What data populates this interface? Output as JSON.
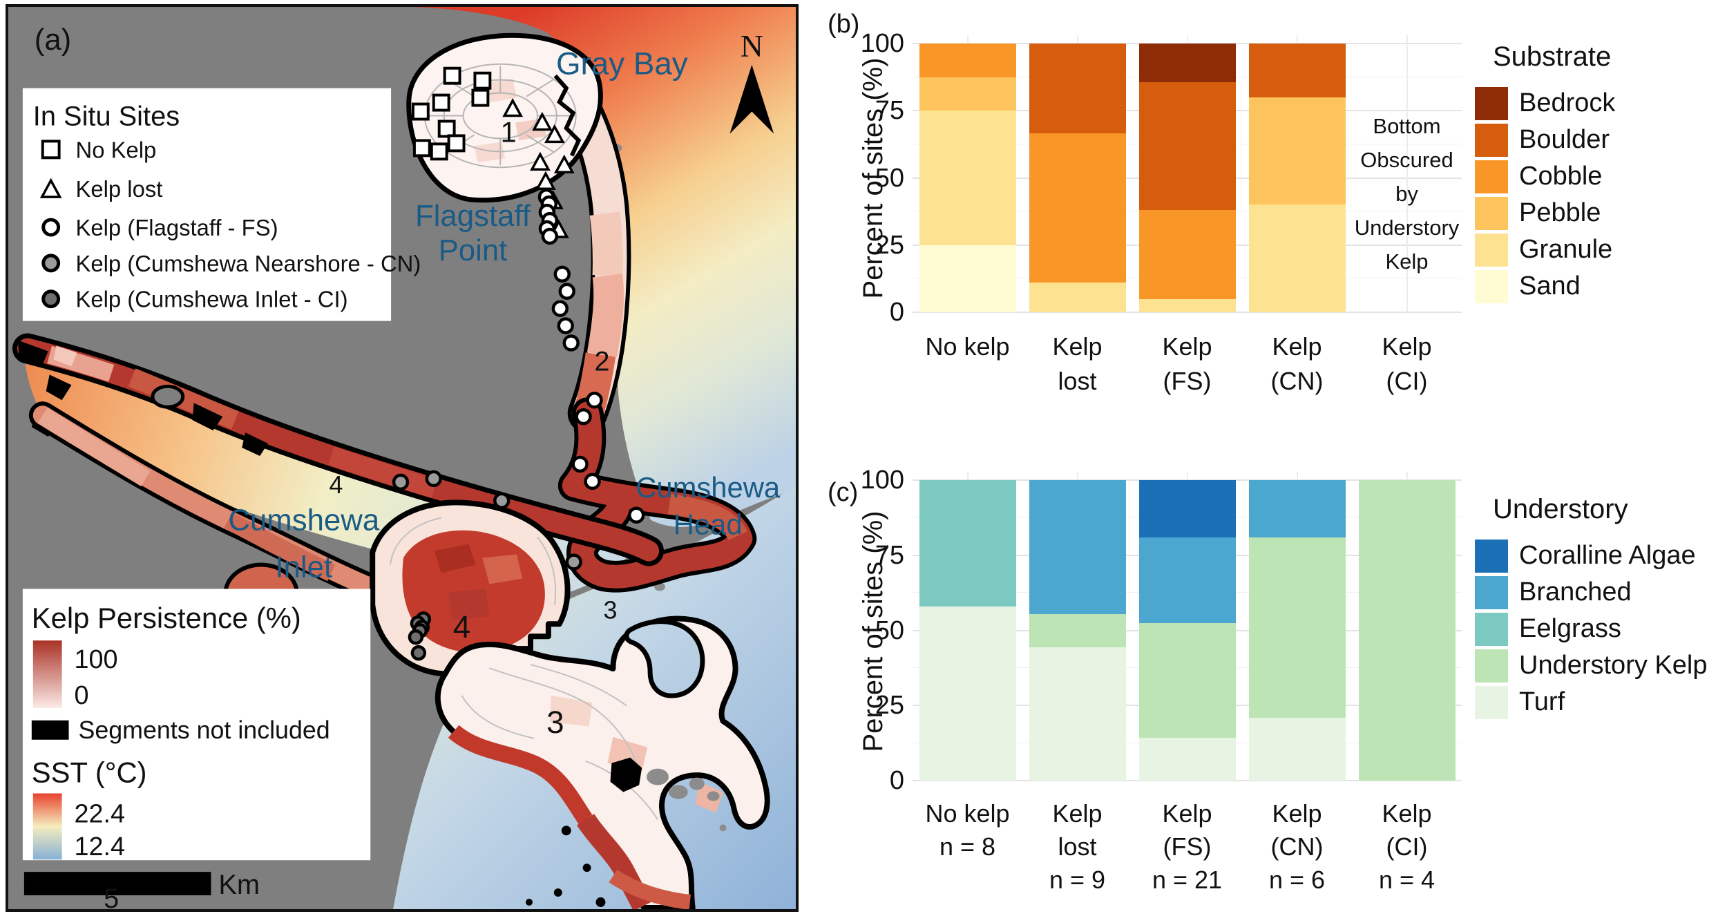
{
  "figure": {
    "panel_a_label": "(a)",
    "panel_b_label": "(b)",
    "panel_c_label": "(c)"
  },
  "map": {
    "labels": {
      "gray_bay": "Gray Bay",
      "flagstaff_1": "Flagstaff",
      "flagstaff_2": "Point",
      "inlet_1": "Cumshewa",
      "inlet_2": "Inlet",
      "head_1": "Cumshewa",
      "head_2": "Head",
      "north": "N"
    },
    "region_numbers": {
      "r1": "1",
      "r2": "2",
      "r3_coast": "3",
      "r3": "3",
      "r4_inlet": "4",
      "r4": "4",
      "r5": "5"
    },
    "site_legend": {
      "title": "In Situ Sites",
      "items": [
        {
          "symbol": "square",
          "label": "No Kelp"
        },
        {
          "symbol": "triangle",
          "label": "Kelp lost"
        },
        {
          "symbol": "circle-white",
          "label": "Kelp (Flagstaff - FS)"
        },
        {
          "symbol": "circle-gray",
          "label": "Kelp (Cumshewa Nearshore - CN)"
        },
        {
          "symbol": "circle-dark-gray",
          "label": "Kelp (Cumshewa Inlet - CI)"
        }
      ]
    },
    "kelp_legend": {
      "title": "Kelp Persistence (%)",
      "max": "100",
      "min": "0",
      "segments_label": "Segments not included",
      "sst_title": "SST (°C)",
      "sst_max": "22.4",
      "sst_min": "12.4"
    },
    "scale_bar": {
      "unit": "Km",
      "value": "5"
    },
    "colors": {
      "land": "#7f7f7f",
      "persistence_high": "#a93226",
      "persistence_low": "#fdf2ee",
      "sst_warm": "#e8432e",
      "sst_mid": "#f6edbe",
      "sst_cool": "#86b0d6",
      "place_label_blue": "#1a5b86"
    }
  },
  "chart_data": [
    {
      "id": "b",
      "type": "bar",
      "stacked": true,
      "ylabel": "Percent of sites (%)",
      "yticks": [
        0,
        25,
        50,
        75,
        100
      ],
      "ylim": [
        0,
        100
      ],
      "categories": [
        [
          "No kelp"
        ],
        [
          "Kelp",
          "lost"
        ],
        [
          "Kelp",
          "(FS)"
        ],
        [
          "Kelp",
          "(CN)"
        ],
        [
          "Kelp",
          "(CI)"
        ]
      ],
      "series": [
        {
          "name": "Sand",
          "color": "#fffcd4",
          "values": [
            25,
            0,
            0,
            0,
            0
          ]
        },
        {
          "name": "Granule",
          "color": "#fde292",
          "values": [
            50,
            11.1,
            4.8,
            40,
            0
          ]
        },
        {
          "name": "Pebble",
          "color": "#fdc35c",
          "values": [
            12.5,
            0,
            0,
            40,
            0
          ]
        },
        {
          "name": "Cobble",
          "color": "#f89627",
          "values": [
            12.5,
            55.6,
            33.3,
            0,
            0
          ]
        },
        {
          "name": "Boulder",
          "color": "#d55d0d",
          "values": [
            0,
            33.3,
            47.6,
            20,
            0
          ]
        },
        {
          "name": "Bedrock",
          "color": "#8e2c06",
          "values": [
            0,
            0,
            14.3,
            0,
            0
          ]
        }
      ],
      "legend_title": "Substrate",
      "legend": [
        {
          "name": "Bedrock",
          "color": "#8e2c06"
        },
        {
          "name": "Boulder",
          "color": "#d55d0d"
        },
        {
          "name": "Cobble",
          "color": "#f89627"
        },
        {
          "name": "Pebble",
          "color": "#fdc35c"
        },
        {
          "name": "Granule",
          "color": "#fde292"
        },
        {
          "name": "Sand",
          "color": "#fffcd4"
        }
      ],
      "annotation": [
        "Bottom",
        "Obscured",
        "by",
        "Understory",
        "Kelp"
      ],
      "annotation_slot": 4
    },
    {
      "id": "c",
      "type": "bar",
      "stacked": true,
      "ylabel": "Percent of sites (%)",
      "yticks": [
        0,
        25,
        50,
        75,
        100
      ],
      "ylim": [
        0,
        100
      ],
      "categories": [
        [
          "No kelp",
          "n = 8"
        ],
        [
          "Kelp",
          "lost",
          "n = 9"
        ],
        [
          "Kelp",
          "(FS)",
          "n = 21"
        ],
        [
          "Kelp",
          "(CN)",
          "n = 6"
        ],
        [
          "Kelp",
          "(CI)",
          "n = 4"
        ]
      ],
      "series": [
        {
          "name": "Turf",
          "color": "#e7f4e3",
          "values": [
            58,
            44.4,
            14.3,
            21,
            0
          ]
        },
        {
          "name": "Understory Kelp",
          "color": "#bce4b5",
          "values": [
            0,
            11.1,
            38.1,
            60,
            100
          ]
        },
        {
          "name": "Eelgrass",
          "color": "#7cc9c1",
          "values": [
            42,
            0,
            0,
            0,
            0
          ]
        },
        {
          "name": "Branched",
          "color": "#4ca7d0",
          "values": [
            0,
            44.5,
            28.6,
            19,
            0
          ]
        },
        {
          "name": "Coralline Algae",
          "color": "#1a6fb5",
          "values": [
            0,
            0,
            19,
            0,
            0
          ]
        }
      ],
      "legend_title": "Understory",
      "legend": [
        {
          "name": "Coralline Algae",
          "color": "#1a6fb5"
        },
        {
          "name": "Branched",
          "color": "#4ca7d0"
        },
        {
          "name": "Eelgrass",
          "color": "#7cc9c1"
        },
        {
          "name": "Understory Kelp",
          "color": "#bce4b5"
        },
        {
          "name": "Turf",
          "color": "#e7f4e3"
        }
      ]
    }
  ]
}
